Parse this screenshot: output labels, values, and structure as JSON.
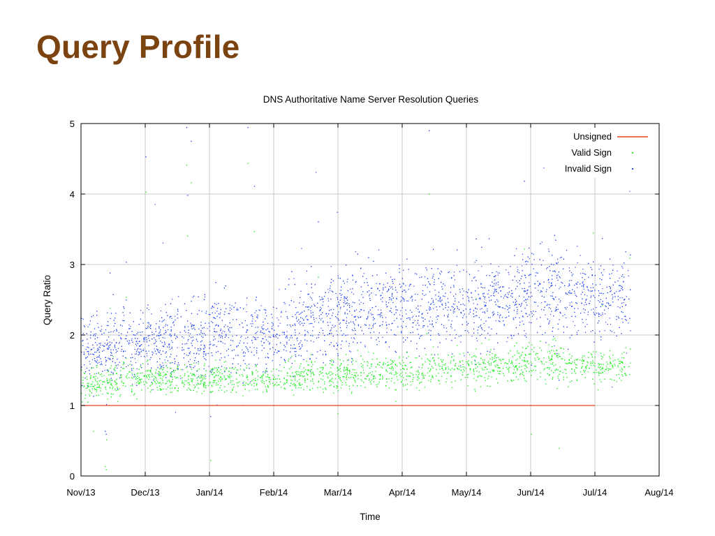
{
  "slide": {
    "title": "Query Profile"
  },
  "chart_data": {
    "type": "scatter",
    "title": "DNS Authoritative Name Server Resolution Queries",
    "xlabel": "Time",
    "ylabel": "Query Ratio",
    "ylim": [
      0,
      5
    ],
    "yticks": [
      "0",
      "1",
      "2",
      "3",
      "4",
      "5"
    ],
    "xticks": [
      "Nov/13",
      "Dec/13",
      "Jan/14",
      "Feb/14",
      "Mar/14",
      "Apr/14",
      "May/14",
      "Jun/14",
      "Jul/14",
      "Aug/14"
    ],
    "grid": true,
    "legend_position": "top-right",
    "series": [
      {
        "name": "Unsigned",
        "style": "line",
        "color": "#e8401c",
        "x": [
          "Nov/13",
          "Jul/14"
        ],
        "y": [
          1.0,
          1.0
        ]
      },
      {
        "name": "Valid Sign",
        "style": "points",
        "color": "#22ee22",
        "x": [
          "Nov/13",
          "Dec/13",
          "Jan/14",
          "Feb/14",
          "Mar/14",
          "Apr/14",
          "May/14",
          "Jun/14",
          "Jul/14"
        ],
        "y": [
          1.3,
          1.4,
          1.38,
          1.4,
          1.45,
          1.5,
          1.52,
          1.62,
          1.55
        ],
        "spread": [
          0.12,
          0.12,
          0.1,
          0.1,
          0.12,
          0.12,
          0.12,
          0.14,
          0.12
        ]
      },
      {
        "name": "Invalid Sign",
        "style": "points",
        "color": "#1f3ff0",
        "x": [
          "Nov/13",
          "Dec/13",
          "Jan/14",
          "Feb/14",
          "Mar/14",
          "Apr/14",
          "May/14",
          "Jun/14",
          "Jul/14"
        ],
        "y": [
          1.8,
          1.9,
          2.0,
          2.05,
          2.3,
          2.45,
          2.35,
          2.6,
          2.5
        ],
        "spread": [
          0.25,
          0.25,
          0.28,
          0.28,
          0.3,
          0.3,
          0.3,
          0.32,
          0.3
        ]
      }
    ]
  }
}
